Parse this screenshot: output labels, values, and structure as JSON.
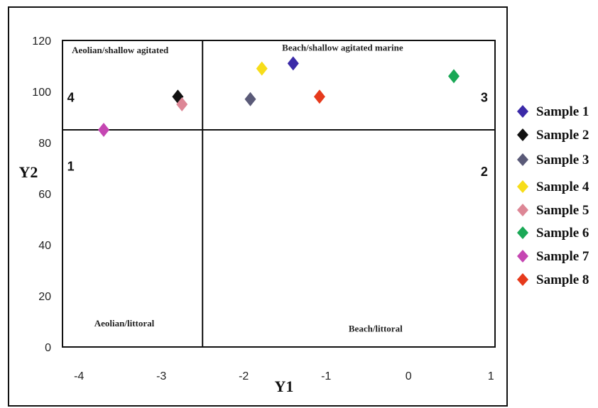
{
  "chart_data": {
    "type": "scatter",
    "xlabel": "Y1",
    "ylabel": "Y2",
    "xlim": [
      -4.2,
      1.05
    ],
    "ylim": [
      0,
      120
    ],
    "xticks": [
      -4,
      -3,
      -2,
      -1,
      0,
      1
    ],
    "yticks": [
      0,
      20,
      40,
      60,
      80,
      100,
      120
    ],
    "divider_x": -2.5,
    "divider_y": 85,
    "series": [
      {
        "name": "Sample 1",
        "color": "#3b2aa8",
        "x": -1.4,
        "y": 111
      },
      {
        "name": "Sample 2",
        "color": "#111111",
        "x": -2.8,
        "y": 98
      },
      {
        "name": "Sample 3",
        "color": "#5a5a78",
        "x": -1.92,
        "y": 97
      },
      {
        "name": "Sample 4",
        "color": "#f7dd1a",
        "x": -1.78,
        "y": 109
      },
      {
        "name": "Sample 5",
        "color": "#dd8796",
        "x": -2.75,
        "y": 95
      },
      {
        "name": "Sample 6",
        "color": "#1aa856",
        "x": 0.55,
        "y": 106
      },
      {
        "name": "Sample 7",
        "color": "#c546b2",
        "x": -3.7,
        "y": 85
      },
      {
        "name": "Sample 8",
        "color": "#e63a1c",
        "x": -1.08,
        "y": 98
      }
    ],
    "regions": [
      {
        "label": "Aeolian/shallow agitated",
        "x": -3.5,
        "y": 115
      },
      {
        "label": "Beach/shallow agitated marine",
        "x": -0.8,
        "y": 116
      },
      {
        "label": "Aeolian/littoral",
        "x": -3.45,
        "y": 8
      },
      {
        "label": "Beach/littoral",
        "x": -0.4,
        "y": 6
      }
    ],
    "quadrants": [
      {
        "label": "4",
        "x": -4.1,
        "y": 96
      },
      {
        "label": "3",
        "x": 0.92,
        "y": 96
      },
      {
        "label": "1",
        "x": -4.1,
        "y": 69
      },
      {
        "label": "2",
        "x": 0.92,
        "y": 67
      }
    ]
  }
}
